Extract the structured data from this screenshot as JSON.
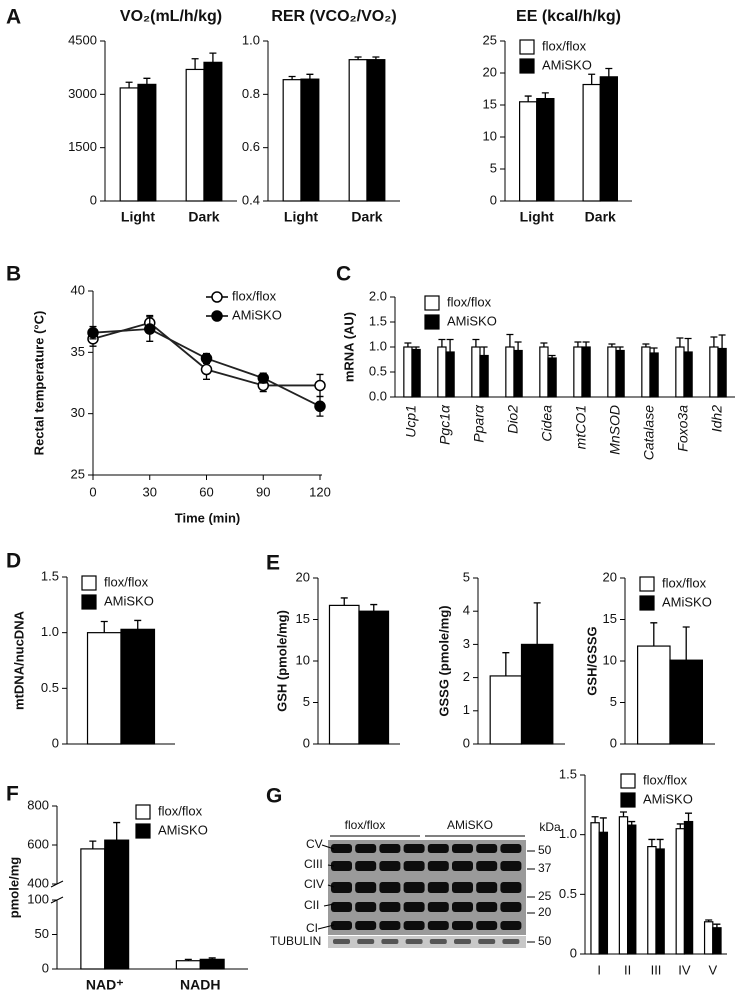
{
  "panel_labels": [
    "A",
    "B",
    "C",
    "D",
    "E",
    "F",
    "G"
  ],
  "chart_data": [
    {
      "type": "bar",
      "title": "VO₂(mL/h/kg)",
      "categories": [
        "Light",
        "Dark"
      ],
      "series": [
        {
          "color": "#ffffff",
          "values": [
            3180,
            3700
          ],
          "errors": [
            160,
            300
          ]
        },
        {
          "color": "#000000",
          "values": [
            3280,
            3900
          ],
          "errors": [
            170,
            260
          ]
        }
      ],
      "ylim": [
        0,
        4500
      ],
      "yticks": [
        0,
        1500,
        3000,
        4500
      ]
    },
    {
      "type": "bar",
      "title": "RER (VCO₂/VO₂)",
      "categories": [
        "Light",
        "Dark"
      ],
      "series": [
        {
          "color": "#ffffff",
          "values": [
            0.855,
            0.93
          ],
          "errors": [
            0.012,
            0.01
          ]
        },
        {
          "color": "#000000",
          "values": [
            0.857,
            0.93
          ],
          "errors": [
            0.018,
            0.01
          ]
        }
      ],
      "ylim": [
        0.4,
        1
      ],
      "yticks": [
        0.4,
        0.6,
        0.8,
        {
          "value": 1,
          "label": "1.0"
        }
      ]
    },
    {
      "type": "bar",
      "title": "EE (kcal/h/kg)",
      "categories": [
        "Light",
        "Dark"
      ],
      "series": [
        {
          "name": "flox/flox",
          "color": "#ffffff",
          "values": [
            15.5,
            18.2
          ],
          "errors": [
            0.9,
            1.6
          ]
        },
        {
          "name": "AMiSKO",
          "color": "#000000",
          "values": [
            16.0,
            19.4
          ],
          "errors": [
            0.9,
            1.3
          ]
        }
      ],
      "ylim": [
        0,
        25
      ],
      "yticks": [
        0,
        5,
        10,
        15,
        20,
        25
      ],
      "legend": "upper left"
    },
    {
      "type": "line",
      "ylabel": "Rectal temperature (°C)",
      "xlabel": "Time (min)",
      "x": [
        0,
        30,
        60,
        90,
        120
      ],
      "series": [
        {
          "name": "flox/flox",
          "color": "#ffffff",
          "values": [
            36.1,
            37.4,
            33.6,
            32.3,
            32.3
          ],
          "errors": [
            0.6,
            0.6,
            0.8,
            0.5,
            0.9
          ]
        },
        {
          "name": "AMiSKO",
          "color": "#000000",
          "values": [
            36.6,
            36.9,
            34.5,
            32.9,
            30.6
          ],
          "errors": [
            0.5,
            1.0,
            0.4,
            0.4,
            0.8
          ]
        }
      ],
      "xlim": [
        0,
        120
      ],
      "xticks": [
        0,
        30,
        60,
        90,
        120
      ],
      "ylim": [
        25,
        40
      ],
      "yticks": [
        25,
        30,
        35,
        40
      ],
      "legend": "upper right"
    },
    {
      "type": "bar",
      "ylabel": "mRNA (AU)",
      "categories": [
        "Ucp1",
        "Pgc1α",
        "Pparα",
        "Dio2",
        "Cidea",
        "mtCO1",
        "MnSOD",
        "Catalase",
        "Foxo3a",
        "Idh2"
      ],
      "series": [
        {
          "name": "flox/flox",
          "color": "#ffffff",
          "values": [
            1.0,
            1.0,
            1.0,
            1.0,
            1.0,
            1.0,
            1.0,
            1.0,
            1.0,
            1.0
          ],
          "errors": [
            0.08,
            0.15,
            0.15,
            0.25,
            0.08,
            0.1,
            0.06,
            0.06,
            0.18,
            0.2
          ]
        },
        {
          "name": "AMiSKO",
          "color": "#000000",
          "values": [
            0.95,
            0.9,
            0.83,
            0.93,
            0.78,
            1.0,
            0.93,
            0.88,
            0.9,
            0.97
          ],
          "errors": [
            0.05,
            0.25,
            0.17,
            0.17,
            0.05,
            0.1,
            0.07,
            0.1,
            0.27,
            0.27
          ]
        }
      ],
      "ylim": [
        0,
        2
      ],
      "yticks": [
        {
          "value": 0,
          "label": "0.0"
        },
        0.5,
        {
          "value": 1,
          "label": "1.0"
        },
        1.5,
        {
          "value": 2,
          "label": "2.0"
        }
      ],
      "legend": "upper left"
    },
    {
      "type": "bar",
      "ylabel": "mtDNA/nucDNA",
      "categories": [
        null
      ],
      "series": [
        {
          "name": "flox/flox",
          "color": "#ffffff",
          "values": [
            1.0
          ],
          "errors": [
            0.1
          ]
        },
        {
          "name": "AMiSKO",
          "color": "#000000",
          "values": [
            1.03
          ],
          "errors": [
            0.08
          ]
        }
      ],
      "ylim": [
        0,
        1.5
      ],
      "yticks": [
        0,
        0.5,
        {
          "value": 1,
          "label": "1.0"
        },
        1.5
      ],
      "legend": "upper left"
    },
    {
      "type": "bar",
      "ylabel": "GSH (pmole/mg)",
      "categories": [
        null
      ],
      "series": [
        {
          "color": "#ffffff",
          "values": [
            16.7
          ],
          "errors": [
            0.9
          ]
        },
        {
          "color": "#000000",
          "values": [
            16.0
          ],
          "errors": [
            0.8
          ]
        }
      ],
      "ylim": [
        0,
        20
      ],
      "yticks": [
        0,
        5,
        10,
        15,
        20
      ]
    },
    {
      "type": "bar",
      "ylabel": "GSSG (pmole/mg)",
      "categories": [
        null
      ],
      "series": [
        {
          "color": "#ffffff",
          "values": [
            2.05
          ],
          "errors": [
            0.7
          ]
        },
        {
          "color": "#000000",
          "values": [
            3.0
          ],
          "errors": [
            1.25
          ]
        }
      ],
      "ylim": [
        0,
        5
      ],
      "yticks": [
        0,
        1,
        2,
        3,
        4,
        5
      ]
    },
    {
      "type": "bar",
      "ylabel": "GSH/GSSG",
      "categories": [
        null
      ],
      "series": [
        {
          "name": "flox/flox",
          "color": "#ffffff",
          "values": [
            11.8
          ],
          "errors": [
            2.8
          ]
        },
        {
          "name": "AMiSKO",
          "color": "#000000",
          "values": [
            10.1
          ],
          "errors": [
            4.0
          ]
        }
      ],
      "ylim": [
        0,
        20
      ],
      "yticks": [
        0,
        5,
        10,
        15,
        20
      ],
      "legend": "upper left"
    },
    {
      "type": "bar",
      "ylabel": "pmole/mg",
      "categories": [
        "NAD⁺",
        "NADH"
      ],
      "series": [
        {
          "name": "flox/flox",
          "color": "#ffffff",
          "values": [
            580,
            12
          ],
          "errors": [
            40,
            2
          ]
        },
        {
          "name": "AMiSKO",
          "color": "#000000",
          "values": [
            625,
            14
          ],
          "errors": [
            90,
            2
          ]
        }
      ],
      "ylim": [
        0,
        800
      ],
      "ybreak": [
        100,
        400
      ],
      "yticks": [
        0,
        50,
        100,
        400,
        600,
        800
      ],
      "legend": "upper right"
    },
    {
      "type": "bar",
      "categories": [
        "I",
        "II",
        "III",
        "IV",
        "V"
      ],
      "series": [
        {
          "name": "flox/flox",
          "color": "#ffffff",
          "values": [
            1.1,
            1.15,
            0.9,
            1.05,
            0.27
          ],
          "errors": [
            0.05,
            0.04,
            0.06,
            0.04,
            0.015
          ]
        },
        {
          "name": "AMiSKO",
          "color": "#000000",
          "values": [
            1.02,
            1.08,
            0.88,
            1.11,
            0.22
          ],
          "errors": [
            0.12,
            0.03,
            0.08,
            0.07,
            0.03
          ]
        }
      ],
      "ylim": [
        0,
        1.5
      ],
      "yticks": [
        0,
        0.5,
        {
          "value": 1,
          "label": "1.0"
        },
        1.5
      ],
      "legend": "upper left"
    }
  ],
  "blot": {
    "groups": [
      "flox/flox",
      "AMiSKO"
    ],
    "unit": "kDa",
    "complexes": [
      "CV",
      "CIII",
      "CIV",
      "CII",
      "CI"
    ],
    "loading": "TUBULIN",
    "markers": [
      50,
      37,
      25,
      20,
      50
    ]
  }
}
